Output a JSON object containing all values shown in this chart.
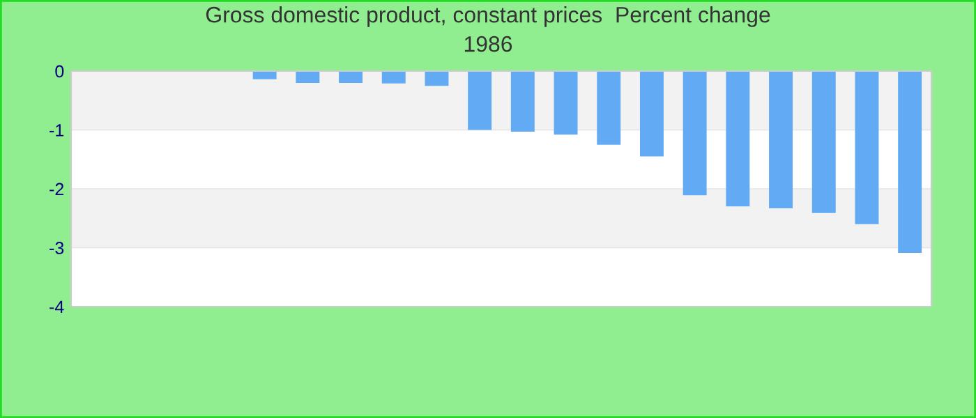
{
  "chart_data": {
    "type": "bar",
    "title": "Gross domestic product, constant prices  Percent change",
    "subtitle": "1986",
    "categories": [
      null,
      null,
      null,
      null,
      null,
      null,
      null,
      null,
      null,
      null,
      null,
      null,
      null,
      null,
      null,
      null,
      null,
      null,
      null,
      null
    ],
    "values": [
      null,
      null,
      null,
      null,
      -0.14,
      -0.2,
      -0.2,
      -0.21,
      -0.25,
      -1.0,
      -1.03,
      -1.08,
      -1.25,
      -1.45,
      -2.11,
      -2.3,
      -2.33,
      -2.41,
      -2.6,
      -3.09
    ],
    "color": "#63aaf4",
    "ylim": [
      -4,
      0
    ],
    "yticks": [
      -4,
      -3,
      -2,
      -1,
      0
    ],
    "grid": "y"
  }
}
